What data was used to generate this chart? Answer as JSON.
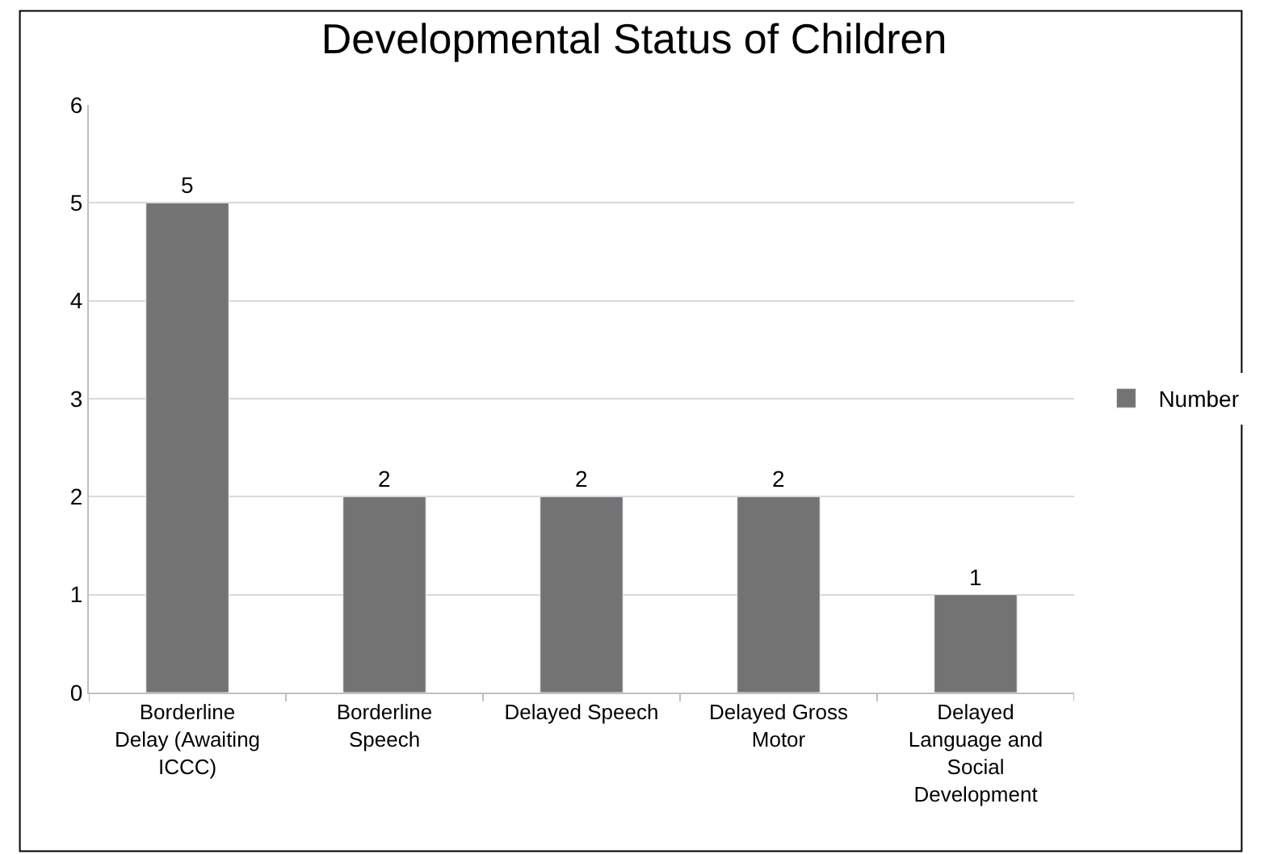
{
  "chart_data": {
    "type": "bar",
    "title": "Developmental Status of Children",
    "categories": [
      "Borderline Delay (Awaiting ICCC)",
      "Borderline Speech",
      "Delayed Speech",
      "Delayed Gross Motor",
      "Delayed Language and Social Development"
    ],
    "series": [
      {
        "name": "Number",
        "color": "#737373",
        "values": [
          5,
          2,
          2,
          2,
          1
        ]
      }
    ],
    "ylim": [
      0,
      6
    ],
    "yticks": [
      0,
      1,
      2,
      3,
      4,
      5,
      6
    ],
    "grid": "y",
    "legend": "right",
    "data_labels": true
  }
}
